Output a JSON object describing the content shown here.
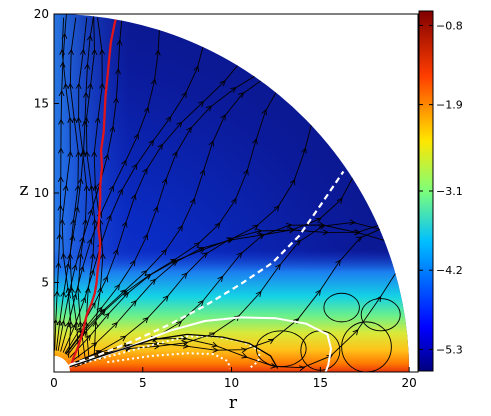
{
  "chart_data": {
    "type": "heatmap",
    "title": "",
    "xlabel": "r",
    "ylabel": "z",
    "xlim": [
      0,
      20.5
    ],
    "ylim": [
      0,
      20
    ],
    "x_ticks": [
      "0",
      "5",
      "10",
      "15",
      "20"
    ],
    "y_ticks": [
      "5",
      "10",
      "15",
      "20"
    ],
    "domain_radius": 20,
    "colormap": "jet",
    "colorbar": {
      "min": -5.6,
      "max": -0.6,
      "tick_values": [
        -0.8,
        -1.9,
        -3.1,
        -4.2,
        -5.3
      ],
      "tick_labels": [
        "−0.8",
        "−1.9",
        "−3.1",
        "−4.2",
        "−5.3"
      ]
    },
    "overlays": [
      {
        "kind": "red-contour",
        "color": "#e0151b",
        "points": [
          [
            0.95,
            0.25
          ],
          [
            1.1,
            0.8
          ],
          [
            1.35,
            1.4
          ],
          [
            1.55,
            2.0
          ],
          [
            1.7,
            2.6
          ],
          [
            1.85,
            3.2
          ],
          [
            2.1,
            3.8
          ],
          [
            2.3,
            4.4
          ],
          [
            2.4,
            5.0
          ],
          [
            2.45,
            5.6
          ],
          [
            2.55,
            6.4
          ],
          [
            2.6,
            7.2
          ],
          [
            2.5,
            8.0
          ],
          [
            2.55,
            8.8
          ],
          [
            2.6,
            9.6
          ],
          [
            2.6,
            10.4
          ],
          [
            2.7,
            11.4
          ],
          [
            2.65,
            12.4
          ],
          [
            2.8,
            13.4
          ],
          [
            2.85,
            14.4
          ],
          [
            2.9,
            15.4
          ],
          [
            3.0,
            16.4
          ],
          [
            3.1,
            17.4
          ],
          [
            3.2,
            18.4
          ],
          [
            3.4,
            19.4
          ],
          [
            3.55,
            20.0
          ]
        ]
      },
      {
        "kind": "white-dashed-contour",
        "color": "#ffffff",
        "points": [
          [
            0.9,
            0.4
          ],
          [
            2.5,
            0.95
          ],
          [
            4.5,
            1.75
          ],
          [
            6.5,
            2.65
          ],
          [
            8.5,
            3.7
          ],
          [
            10.5,
            4.9
          ],
          [
            12.3,
            6.1
          ],
          [
            13.8,
            7.6
          ],
          [
            15.0,
            9.3
          ],
          [
            16.3,
            11.2
          ]
        ]
      },
      {
        "kind": "white-solid-contour",
        "color": "#ffffff",
        "points": [
          [
            0.8,
            0.35
          ],
          [
            2.5,
            0.8
          ],
          [
            4.5,
            1.5
          ],
          [
            6.5,
            2.3
          ],
          [
            8.5,
            2.85
          ],
          [
            10.5,
            3.05
          ],
          [
            12.5,
            3.0
          ],
          [
            14.2,
            2.7
          ],
          [
            15.4,
            2.1
          ],
          [
            15.6,
            1.3
          ],
          [
            15.45,
            0.4
          ],
          [
            15.3,
            0.0
          ]
        ]
      },
      {
        "kind": "white-dotted-contour",
        "color": "#ffffff",
        "points": [
          [
            0.9,
            0.3
          ],
          [
            3.0,
            0.85
          ],
          [
            5.5,
            1.5
          ],
          [
            7.5,
            2.0
          ],
          [
            9.0,
            2.0
          ],
          [
            10.6,
            1.7
          ],
          [
            11.6,
            1.2
          ],
          [
            11.5,
            0.6
          ],
          [
            11.0,
            0.2
          ]
        ]
      },
      {
        "kind": "white-dotted-contour",
        "color": "#ffffff",
        "points": [
          [
            3.0,
            0.55
          ],
          [
            5.5,
            0.9
          ],
          [
            7.5,
            1.05
          ],
          [
            9.0,
            1.0
          ],
          [
            9.8,
            0.6
          ],
          [
            9.9,
            0.2
          ]
        ]
      },
      {
        "kind": "black-contour",
        "color": "#000000",
        "points": [
          [
            0.9,
            0.3
          ],
          [
            3.0,
            1.0
          ],
          [
            5.5,
            1.8
          ],
          [
            7.5,
            2.1
          ],
          [
            9.5,
            1.95
          ],
          [
            11.0,
            1.6
          ],
          [
            12.2,
            0.9
          ],
          [
            12.6,
            0.2
          ]
        ]
      }
    ]
  }
}
